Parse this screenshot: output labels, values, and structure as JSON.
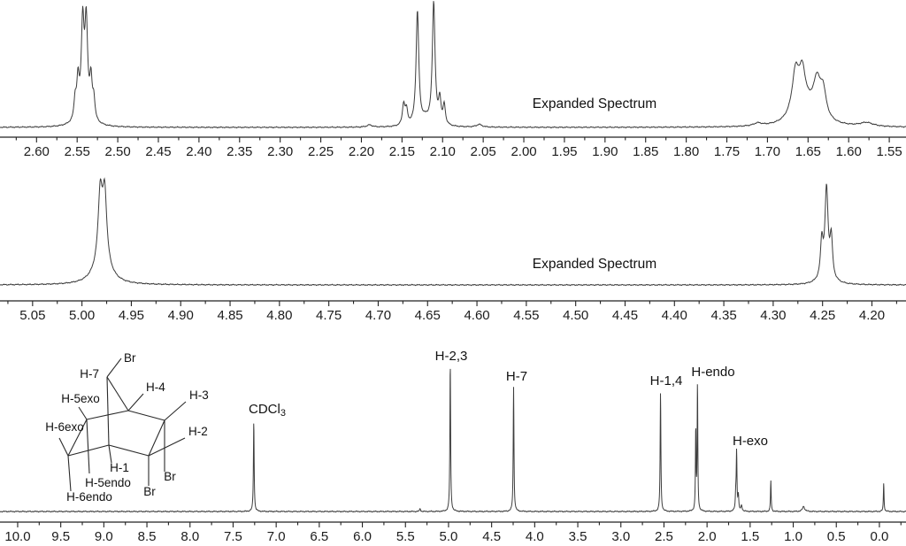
{
  "structure": {
    "description_visible_labels_only": true,
    "labels": [
      "Br",
      "H-7",
      "H-4",
      "H-3",
      "H-5exo",
      "H-6exo",
      "H-2",
      "H-1",
      "H-5endo",
      "Br",
      "H-6endo",
      "Br"
    ]
  },
  "chart_data": {
    "type": "line",
    "title": "",
    "grid": false,
    "panels": [
      {
        "name": "expanded-spectrum-2.6-1.55-ppm",
        "annotation": "Expanded Spectrum",
        "x_range": [
          2.645,
          1.5294
        ],
        "ticks": {
          "values": [
            2.6,
            2.55,
            2.5,
            2.45,
            2.4,
            2.35,
            2.3,
            2.25,
            2.2,
            2.15,
            2.1,
            2.05,
            2.0,
            1.95,
            1.9,
            1.85,
            1.8,
            1.75,
            1.7,
            1.65,
            1.6,
            1.55
          ],
          "step": 0.05,
          "decimals": 2
        },
        "peaks": [
          {
            "ppm": 2.5525,
            "h": 0.16,
            "w": 0.0016
          },
          {
            "ppm": 2.549,
            "h": 0.3,
            "w": 0.0018
          },
          {
            "ppm": 2.5432,
            "h": 0.72,
            "w": 0.002
          },
          {
            "ppm": 2.5388,
            "h": 0.72,
            "w": 0.002
          },
          {
            "ppm": 2.533,
            "h": 0.3,
            "w": 0.0018
          },
          {
            "ppm": 2.5295,
            "h": 0.16,
            "w": 0.0016
          },
          {
            "ppm": 2.541,
            "h": 0.1,
            "w": 0.008
          },
          {
            "ppm": 2.19,
            "h": 0.018,
            "w": 0.004
          },
          {
            "ppm": 2.148,
            "h": 0.17,
            "w": 0.0018
          },
          {
            "ppm": 2.1445,
            "h": 0.12,
            "w": 0.0018
          },
          {
            "ppm": 2.131,
            "h": 0.92,
            "w": 0.002
          },
          {
            "ppm": 2.121,
            "h": 0.05,
            "w": 0.006
          },
          {
            "ppm": 2.111,
            "h": 0.99,
            "w": 0.002
          },
          {
            "ppm": 2.1035,
            "h": 0.2,
            "w": 0.0017
          },
          {
            "ppm": 2.098,
            "h": 0.16,
            "w": 0.0017
          },
          {
            "ppm": 2.055,
            "h": 0.022,
            "w": 0.004
          },
          {
            "ppm": 1.712,
            "h": 0.022,
            "w": 0.006
          },
          {
            "ppm": 1.6655,
            "h": 0.3,
            "w": 0.005
          },
          {
            "ppm": 1.657,
            "h": 0.27,
            "w": 0.0045
          },
          {
            "ppm": 1.6625,
            "h": 0.1,
            "w": 0.01
          },
          {
            "ppm": 1.648,
            "h": 0.12,
            "w": 0.015
          },
          {
            "ppm": 1.639,
            "h": 0.26,
            "w": 0.005
          },
          {
            "ppm": 1.6315,
            "h": 0.22,
            "w": 0.0045
          },
          {
            "ppm": 1.578,
            "h": 0.03,
            "w": 0.01
          }
        ],
        "labels": []
      },
      {
        "name": "expanded-spectrum-5.05-4.20-ppm",
        "annotation": "Expanded Spectrum",
        "x_range": [
          5.083,
          4.1655
        ],
        "ticks": {
          "values": [
            5.05,
            5.0,
            4.95,
            4.9,
            4.85,
            4.8,
            4.75,
            4.7,
            4.65,
            4.6,
            4.55,
            4.5,
            4.45,
            4.4,
            4.35,
            4.3,
            4.25,
            4.2
          ],
          "step": 0.05,
          "decimals": 2
        },
        "peaks": [
          {
            "ppm": 4.9815,
            "h": 0.62,
            "w": 0.0025
          },
          {
            "ppm": 4.977,
            "h": 0.62,
            "w": 0.0025
          },
          {
            "ppm": 4.9795,
            "h": 0.22,
            "w": 0.009
          },
          {
            "ppm": 4.2508,
            "h": 0.33,
            "w": 0.0015
          },
          {
            "ppm": 4.246,
            "h": 0.78,
            "w": 0.0018
          },
          {
            "ppm": 4.2412,
            "h": 0.36,
            "w": 0.0015
          },
          {
            "ppm": 4.2462,
            "h": 0.1,
            "w": 0.006
          }
        ],
        "labels": []
      },
      {
        "name": "full-spectrum-10-0-ppm",
        "annotation": "",
        "x_range": [
          10.205,
          -0.3087
        ],
        "ticks": {
          "values": [
            10.0,
            9.5,
            9.0,
            8.5,
            8.0,
            7.5,
            7.0,
            6.5,
            6.0,
            5.5,
            5.0,
            4.5,
            4.0,
            3.5,
            3.0,
            2.5,
            2.0,
            1.5,
            1.0,
            0.5,
            0.0
          ],
          "step": 0.5,
          "decimals": 1
        },
        "peaks": [
          {
            "ppm": 7.26,
            "h": 0.61,
            "w": 0.005
          },
          {
            "ppm": 5.33,
            "h": 0.02,
            "w": 0.006
          },
          {
            "ppm": 4.98,
            "h": 1.0,
            "w": 0.005
          },
          {
            "ppm": 4.245,
            "h": 0.84,
            "w": 0.005
          },
          {
            "ppm": 2.54,
            "h": 0.8,
            "w": 0.005
          },
          {
            "ppm": 2.131,
            "h": 0.55,
            "w": 0.0045
          },
          {
            "ppm": 2.111,
            "h": 0.85,
            "w": 0.0045
          },
          {
            "ppm": 1.667,
            "h": 0.1,
            "w": 0.006
          },
          {
            "ppm": 1.657,
            "h": 0.39,
            "w": 0.005
          },
          {
            "ppm": 1.637,
            "h": 0.1,
            "w": 0.006
          },
          {
            "ppm": 1.6,
            "h": 0.04,
            "w": 0.008
          },
          {
            "ppm": 1.26,
            "h": 0.21,
            "w": 0.0045
          },
          {
            "ppm": 0.88,
            "h": 0.035,
            "w": 0.015
          },
          {
            "ppm": -0.05,
            "h": 0.19,
            "w": 0.0045
          }
        ],
        "labels": [
          {
            "text": "CDCl",
            "sub": "3",
            "ppm": 7.26
          },
          {
            "text": "H-2,3",
            "ppm": 4.98
          },
          {
            "text": "H-7",
            "ppm": 4.24
          },
          {
            "text": "H-1,4",
            "ppm": 2.54
          },
          {
            "text": "H-endo",
            "ppm": 2.12
          },
          {
            "text": "H-exo",
            "ppm": 1.65
          }
        ]
      }
    ]
  }
}
